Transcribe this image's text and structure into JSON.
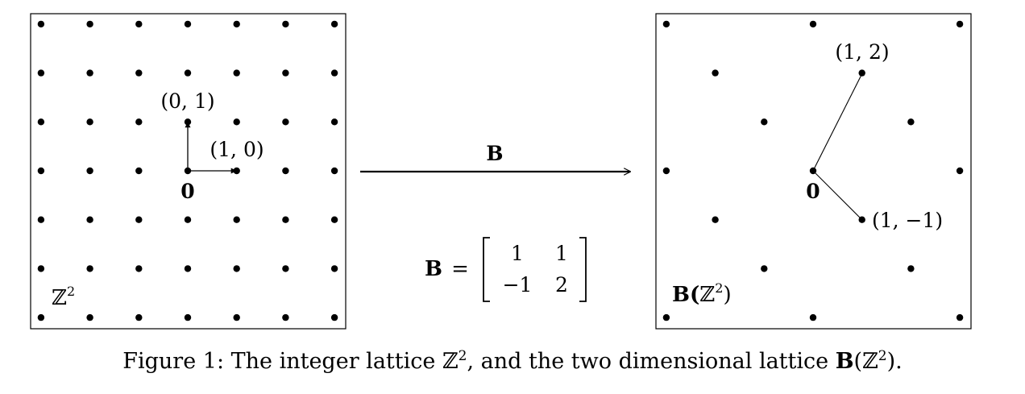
{
  "left_panel": {
    "set_label_base": "ℤ",
    "set_label_exp": "2",
    "origin_label": "0",
    "vector_e1_label": "(1, 0)",
    "vector_e2_label": "(0, 1)",
    "grid_x_values": [
      -3,
      -2,
      -1,
      0,
      1,
      2,
      3
    ],
    "grid_y_values": [
      -3,
      -2,
      -1,
      0,
      1,
      2,
      3
    ]
  },
  "arrow": {
    "label": "B"
  },
  "matrix": {
    "name": "B",
    "equals": "=",
    "rows": [
      [
        "1",
        "1"
      ],
      [
        "−1",
        "2"
      ]
    ]
  },
  "right_panel": {
    "set_label_prefix": "B(",
    "set_label_base": "ℤ",
    "set_label_exp": "2",
    "set_label_suffix": ")",
    "origin_label": "0",
    "basis_v1_label": "(1, 2)",
    "basis_v2_label": "(1, −1)",
    "basis": [
      [
        1,
        2
      ],
      [
        1,
        -1
      ]
    ]
  },
  "caption": {
    "prefix": "Figure 1: The integer lattice ",
    "z1_base": "ℤ",
    "z1_exp": "2",
    "middle": ", and the two dimensional lattice ",
    "b": "B",
    "paren_open": "(",
    "z2_base": "ℤ",
    "z2_exp": "2",
    "paren_close": ")."
  },
  "colors": {
    "ink": "#000000",
    "background": "#ffffff"
  }
}
